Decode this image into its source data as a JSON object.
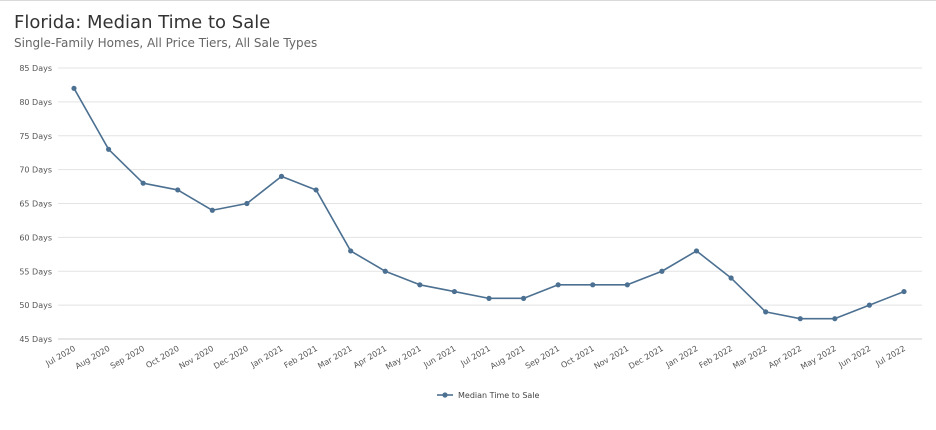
{
  "chart_data": {
    "type": "line",
    "title": "Florida: Median Time to Sale",
    "subtitle": "Single-Family Homes, All Price Tiers, All Sale Types",
    "xlabel": "",
    "ylabel": "",
    "y_unit_suffix": " Days",
    "ylim": [
      45,
      85
    ],
    "y_ticks": [
      45,
      50,
      55,
      60,
      65,
      70,
      75,
      80,
      85
    ],
    "grid": true,
    "legend_position": "bottom-center",
    "categories": [
      "Jul 2020",
      "Aug 2020",
      "Sep 2020",
      "Oct 2020",
      "Nov 2020",
      "Dec 2020",
      "Jan 2021",
      "Feb 2021",
      "Mar 2021",
      "Apr 2021",
      "May 2021",
      "Jun 2021",
      "Jul 2021",
      "Aug 2021",
      "Sep 2021",
      "Oct 2021",
      "Nov 2021",
      "Dec 2021",
      "Jan 2022",
      "Feb 2022",
      "Mar 2022",
      "Apr 2022",
      "May 2022",
      "Jun 2022",
      "Jul 2022"
    ],
    "series": [
      {
        "name": "Median Time to Sale",
        "color": "#4c7091",
        "values": [
          82,
          73,
          68,
          67,
          64,
          65,
          69,
          67,
          58,
          55,
          53,
          52,
          51,
          51,
          53,
          53,
          53,
          55,
          58,
          54,
          49,
          48,
          48,
          50,
          52
        ]
      }
    ],
    "colors": {
      "grid": "#e3e3e3",
      "axis": "#cccccc"
    }
  }
}
